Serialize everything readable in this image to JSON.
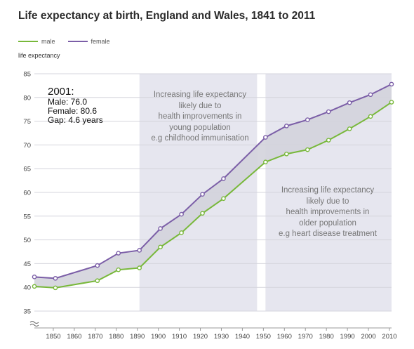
{
  "chart_data": {
    "type": "line",
    "title": "Life expectancy at birth, England and Wales, 1841 to 2011",
    "ylabel": "life expectancy",
    "xlabel": "",
    "x": [
      1841,
      1851,
      1871,
      1881,
      1891,
      1901,
      1911,
      1921,
      1931,
      1951,
      1961,
      1971,
      1981,
      1991,
      2001,
      2011
    ],
    "series": [
      {
        "name": "male",
        "color": "#78b83a",
        "values": [
          40.2,
          39.9,
          41.4,
          43.7,
          44.1,
          48.5,
          51.5,
          55.6,
          58.7,
          66.4,
          68.1,
          69.0,
          71.0,
          73.4,
          76.0,
          79.0
        ]
      },
      {
        "name": "female",
        "color": "#7b5ea7",
        "values": [
          42.2,
          41.9,
          44.6,
          47.2,
          47.8,
          52.4,
          55.4,
          59.6,
          62.9,
          71.6,
          74.0,
          75.3,
          77.0,
          78.9,
          80.6,
          82.8
        ]
      }
    ],
    "xticks": [
      1850,
      1860,
      1870,
      1880,
      1890,
      1900,
      1910,
      1920,
      1930,
      1940,
      1950,
      1960,
      1970,
      1980,
      1990,
      2000,
      2010
    ],
    "yticks": [
      35,
      40,
      45,
      50,
      55,
      60,
      65,
      70,
      75,
      80,
      85
    ],
    "xlim": [
      1841,
      2011
    ],
    "ylim": [
      35,
      85
    ],
    "axis_break": true,
    "grid": true,
    "legend_position": "top-left",
    "shaded_periods": [
      {
        "from": 1891,
        "to": 1947
      },
      {
        "from": 1951,
        "to": 2011
      }
    ],
    "annotations": [
      {
        "lines": [
          "Increasing life expectancy",
          "likely due to",
          "health improvements in",
          "young population",
          "e.g childhood immunisation"
        ]
      },
      {
        "lines": [
          "Increasing life expectancy",
          "likely due to",
          "health improvements in",
          "older population",
          "e.g heart disease treatment"
        ]
      }
    ],
    "callout": {
      "year": "2001:",
      "lines": [
        "Male: 76.0",
        "Female: 80.6",
        "Gap: 4.6 years"
      ]
    }
  }
}
